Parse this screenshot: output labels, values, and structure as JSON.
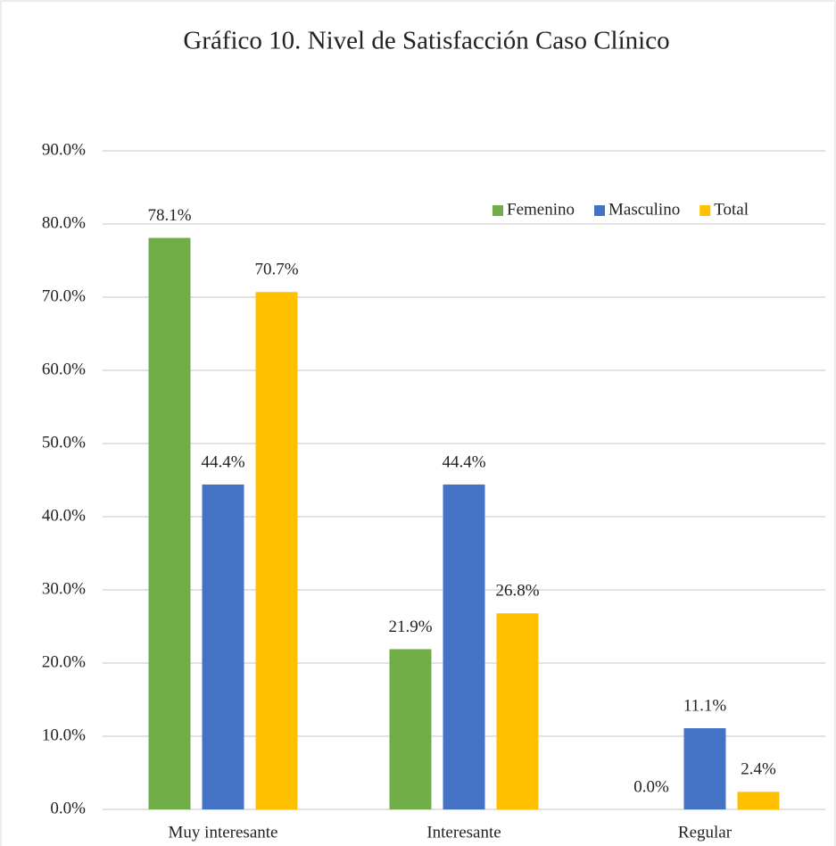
{
  "chart_data": {
    "type": "bar",
    "title": "Gráfico 10. Nivel de Satisfacción Caso Clínico",
    "categories": [
      "Muy interesante",
      "Interesante",
      "Regular"
    ],
    "series": [
      {
        "name": "Femenino",
        "color": "#70ad47",
        "values": [
          78.1,
          21.9,
          0.0
        ],
        "value_labels": [
          "78.1%",
          "21.9%",
          "0.0%"
        ]
      },
      {
        "name": "Masculino",
        "color": "#4472c4",
        "values": [
          44.4,
          44.4,
          11.1
        ],
        "value_labels": [
          "44.4%",
          "44.4%",
          "11.1%"
        ]
      },
      {
        "name": "Total",
        "color": "#ffc000",
        "values": [
          70.7,
          26.8,
          2.4
        ],
        "value_labels": [
          "70.7%",
          "26.8%",
          "2.4%"
        ]
      }
    ],
    "ylim": [
      0,
      90
    ],
    "yticks": [
      {
        "value": 0,
        "label": "0.0%"
      },
      {
        "value": 10,
        "label": "10.0%"
      },
      {
        "value": 20,
        "label": "20.0%"
      },
      {
        "value": 30,
        "label": "30.0%"
      },
      {
        "value": 40,
        "label": "40.0%"
      },
      {
        "value": 50,
        "label": "50.0%"
      },
      {
        "value": 60,
        "label": "60.0%"
      },
      {
        "value": 70,
        "label": "70.0%"
      },
      {
        "value": 80,
        "label": "80.0%"
      },
      {
        "value": 90,
        "label": "90.0%"
      }
    ],
    "grid": true,
    "legend": "top-right"
  }
}
